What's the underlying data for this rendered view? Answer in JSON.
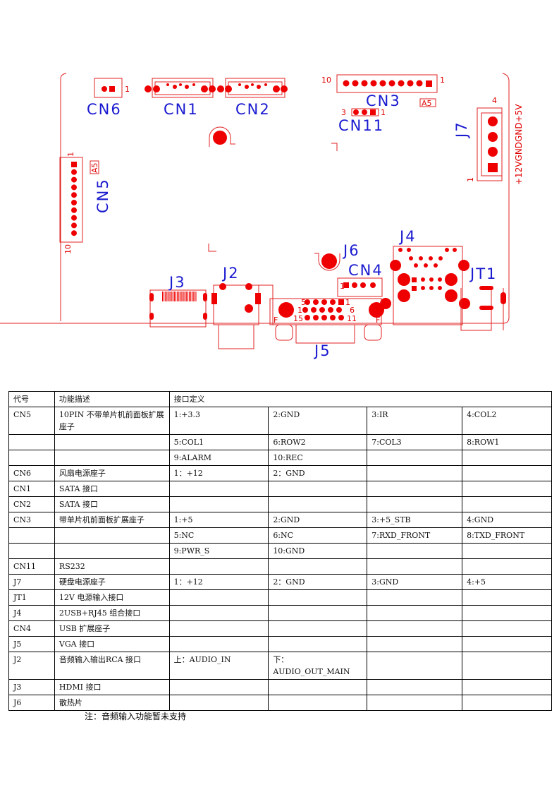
{
  "diagram": {
    "labels": {
      "cn6": "CN6",
      "cn1": "CN1",
      "cn2": "CN2",
      "cn3": "CN3",
      "cn11": "CN11",
      "j7": "J7",
      "cn5": "CN5",
      "j6": "J6",
      "j4": "J4",
      "j3": "J3",
      "j2": "J2",
      "cn4": "CN4",
      "jt1": "JT1",
      "j5": "J5"
    },
    "pins": {
      "cn6_1": "1",
      "cn3_10": "10",
      "cn3_1": "1",
      "cn3_mark": "A5",
      "cn11_3": "3",
      "cn11_1": "1",
      "j7_4": "4",
      "j7_1": "1",
      "j7_pinout": "+12VGNDGND+5V",
      "cn5_1": "1",
      "cn5_10": "10",
      "cn5_mark": "A5",
      "cn4_1": "1",
      "j5_5": "5",
      "j5_1": "1",
      "j5_10": "10",
      "j5_6": "6",
      "j5_15": "15",
      "j5_11": "11",
      "j5_f": "F"
    },
    "colors": {
      "outline": "#e02020",
      "pad": "#ee0000",
      "label": "#1a1ad0"
    }
  },
  "table": {
    "headers": [
      "代号",
      "功能描述",
      "接口定义"
    ],
    "rows": [
      [
        "CN5",
        "10PIN 不带单片机前面板扩展座子",
        "1:+3.3",
        "2:GND",
        "3:IR",
        "4:COL2"
      ],
      [
        "",
        "",
        "5:COL1",
        "6:ROW2",
        "7:COL3",
        "8:ROW1"
      ],
      [
        "",
        "",
        "9:ALARM",
        "10:REC",
        "",
        ""
      ],
      [
        "CN6",
        "风扇电源座子",
        "1：+12",
        "2：GND",
        "",
        ""
      ],
      [
        "CN1",
        "SATA 接口",
        "",
        "",
        "",
        ""
      ],
      [
        "CN2",
        "SATA 接口",
        "",
        "",
        "",
        ""
      ],
      [
        "CN3",
        "带单片机前面板扩展座子",
        "1:+5",
        "2:GND",
        "3:+5_STB",
        "4:GND"
      ],
      [
        "",
        "",
        "5:NC",
        "6:NC",
        "7:RXD_FRONT",
        "8:TXD_FRONT"
      ],
      [
        "",
        "",
        "9:PWR_S",
        "10:GND",
        "",
        ""
      ],
      [
        "CN11",
        "RS232",
        "",
        "",
        "",
        ""
      ],
      [
        "J7",
        "硬盘电源座子",
        "1：+12",
        "2：GND",
        "3:GND",
        "4:+5"
      ],
      [
        "JT1",
        "12V 电源输入接口",
        "",
        "",
        "",
        ""
      ],
      [
        "J4",
        "2USB+RJ45 组合接口",
        "",
        "",
        "",
        ""
      ],
      [
        "CN4",
        "USB 扩展座子",
        "",
        "",
        "",
        ""
      ],
      [
        "J5",
        "VGA 接口",
        "",
        "",
        "",
        ""
      ],
      [
        "J2",
        "音频输入输出RCA 接口",
        "上：AUDIO_IN",
        "下：AUDIO_OUT_MAIN",
        "",
        ""
      ],
      [
        "J3",
        "HDMI 接口",
        "",
        "",
        "",
        ""
      ],
      [
        "J6",
        "散热片",
        "",
        "",
        "",
        ""
      ]
    ]
  },
  "note": "注：音频输入功能暂未支持"
}
